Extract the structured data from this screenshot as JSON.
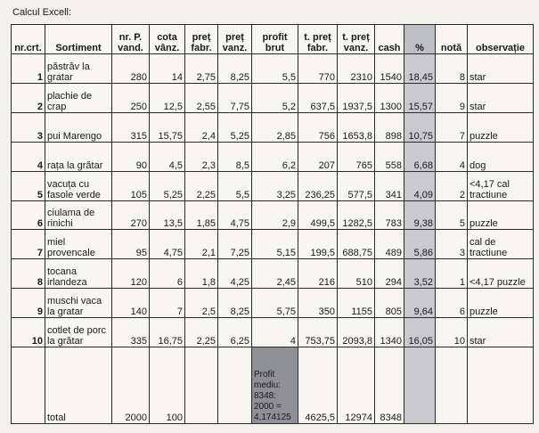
{
  "caption": "Calcul Excell:",
  "headers": [
    "nr.crt.",
    "Sortiment",
    "nr. P. vand.",
    "cota vânz.",
    "preț fabr.",
    "preț vanz.",
    "profit brut",
    "t. preț fabr.",
    "t. preț vanz.",
    "cash",
    "%",
    "notă",
    "observație"
  ],
  "rows": [
    {
      "nr": "1",
      "sortiment": "păstrăv la gratar",
      "vand": "280",
      "cota": "14",
      "fabr": "2,75",
      "vanz": "8,25",
      "profit": "5,5",
      "tfabr": "770",
      "tvanz": "2310",
      "cash": "1540",
      "pct": "18,45",
      "nota": "8",
      "obs": "star"
    },
    {
      "nr": "2",
      "sortiment": "plachie de crap",
      "vand": "250",
      "cota": "12,5",
      "fabr": "2,55",
      "vanz": "7,75",
      "profit": "5,2",
      "tfabr": "637,5",
      "tvanz": "1937,5",
      "cash": "1300",
      "pct": "15,57",
      "nota": "9",
      "obs": "star"
    },
    {
      "nr": "3",
      "sortiment": "pui Marengo",
      "vand": "315",
      "cota": "15,75",
      "fabr": "2,4",
      "vanz": "5,25",
      "profit": "2,85",
      "tfabr": "756",
      "tvanz": "1653,8",
      "cash": "898",
      "pct": "10,75",
      "nota": "7",
      "obs": "puzzle"
    },
    {
      "nr": "4",
      "sortiment": "rața la grătar",
      "vand": "90",
      "cota": "4,5",
      "fabr": "2,3",
      "vanz": "8,5",
      "profit": "6,2",
      "tfabr": "207",
      "tvanz": "765",
      "cash": "558",
      "pct": "6,68",
      "nota": "4",
      "obs": "dog"
    },
    {
      "nr": "5",
      "sortiment": "vacuța cu fasole verde",
      "vand": "105",
      "cota": "5,25",
      "fabr": "2,25",
      "vanz": "5,5",
      "profit": "3,25",
      "tfabr": "236,25",
      "tvanz": "577,5",
      "cash": "341",
      "pct": "4,09",
      "nota": "2",
      "obs": "<4,17 cal tractiune"
    },
    {
      "nr": "6",
      "sortiment": "ciulama de rinichi",
      "vand": "270",
      "cota": "13,5",
      "fabr": "1,85",
      "vanz": "4,75",
      "profit": "2,9",
      "tfabr": "499,5",
      "tvanz": "1282,5",
      "cash": "783",
      "pct": "9,38",
      "nota": "5",
      "obs": "puzzle"
    },
    {
      "nr": "7",
      "sortiment": "miel provencale",
      "vand": "95",
      "cota": "4,75",
      "fabr": "2,1",
      "vanz": "7,25",
      "profit": "5,15",
      "tfabr": "199,5",
      "tvanz": "688,75",
      "cash": "489",
      "pct": "5,86",
      "nota": "3",
      "obs": "cal de tractiune"
    },
    {
      "nr": "8",
      "sortiment": "tocana irlandeza",
      "vand": "120",
      "cota": "6",
      "fabr": "1,8",
      "vanz": "4,25",
      "profit": "2,45",
      "tfabr": "216",
      "tvanz": "510",
      "cash": "294",
      "pct": "3,52",
      "nota": "1",
      "obs": "<4,17 puzzle"
    },
    {
      "nr": "9",
      "sortiment": "muschi vaca la gratar",
      "vand": "140",
      "cota": "7",
      "fabr": "2,5",
      "vanz": "8,25",
      "profit": "5,75",
      "tfabr": "350",
      "tvanz": "1155",
      "cash": "805",
      "pct": "9,64",
      "nota": "6",
      "obs": "puzzle"
    },
    {
      "nr": "10",
      "sortiment": "cotlet de porc la grătar",
      "vand": "335",
      "cota": "16,75",
      "fabr": "2,25",
      "vanz": "6,25",
      "profit": "4",
      "tfabr": "753,75",
      "tvanz": "2093,8",
      "cash": "1340",
      "pct": "16,05",
      "nota": "10",
      "obs": "star"
    }
  ],
  "total": {
    "label": "total",
    "vand": "2000",
    "cota": "100",
    "profit_note": "Profit mediu: 8348: 2000 = 4,174125",
    "tfabr": "4625,5",
    "tvanz": "12974",
    "cash": "8348"
  }
}
